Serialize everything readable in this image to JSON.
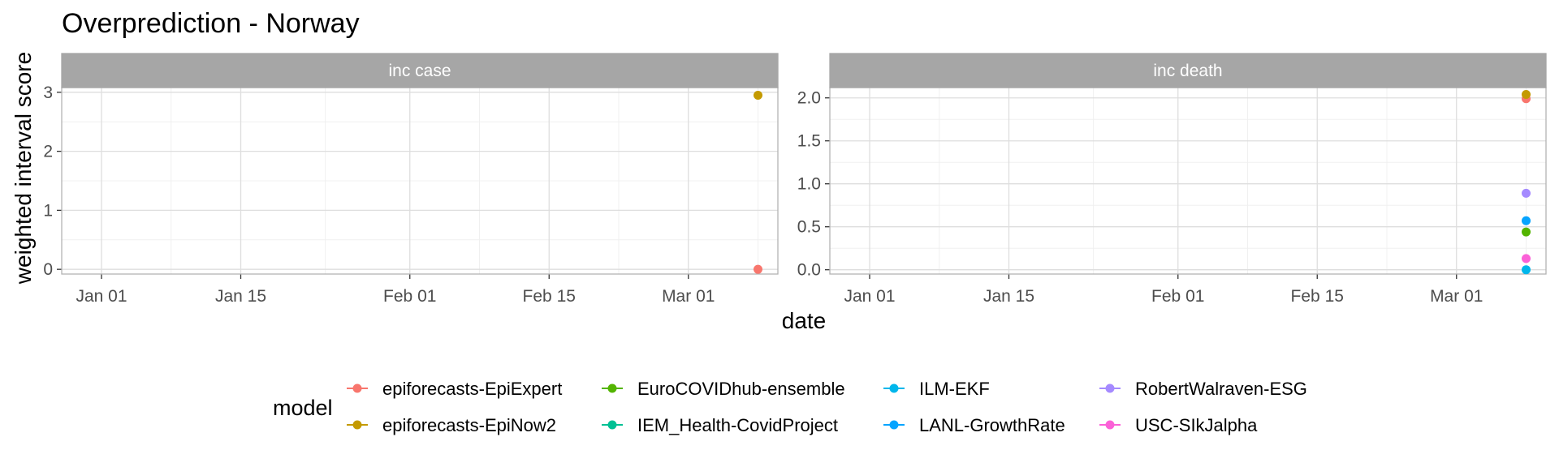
{
  "chart_data": {
    "type": "scatter",
    "title": "Overprediction - Norway",
    "xlabel": "date",
    "ylabel": "weighted interval score",
    "x_tick_labels": [
      "Jan 01",
      "Jan 15",
      "Feb 01",
      "Feb 15",
      "Mar 01"
    ],
    "x_tick_dates": [
      "2021-01-01",
      "2021-01-15",
      "2021-02-01",
      "2021-02-15",
      "2021-03-01"
    ],
    "xlim": [
      "2020-12-28",
      "2021-03-10"
    ],
    "grid": true,
    "legend_title": "model",
    "legend_position": "bottom",
    "series": [
      {
        "name": "epiforecasts-EpiExpert",
        "color": "#F8766D"
      },
      {
        "name": "epiforecasts-EpiNow2",
        "color": "#C49A00"
      },
      {
        "name": "EuroCOVIDhub-ensemble",
        "color": "#53B400"
      },
      {
        "name": "IEM_Health-CovidProject",
        "color": "#00C094"
      },
      {
        "name": "ILM-EKF",
        "color": "#00B6EB"
      },
      {
        "name": "LANL-GrowthRate",
        "color": "#06A4FF"
      },
      {
        "name": "RobertWalraven-ESG",
        "color": "#A58AFF"
      },
      {
        "name": "USC-SIkJalpha",
        "color": "#FB61D7"
      }
    ],
    "panels": [
      {
        "label": "inc case",
        "ylim": [
          -0.08,
          3.08
        ],
        "y_ticks": [
          0,
          1,
          2,
          3
        ],
        "y_tick_labels": [
          "0",
          "1",
          "2",
          "3"
        ],
        "points": [
          {
            "model": "epiforecasts-EpiExpert",
            "date": "2021-03-08",
            "value": 0.0
          },
          {
            "model": "epiforecasts-EpiNow2",
            "date": "2021-03-08",
            "value": 2.95
          }
        ]
      },
      {
        "label": "inc death",
        "ylim": [
          -0.05,
          2.12
        ],
        "y_ticks": [
          0,
          0.5,
          1.0,
          1.5,
          2.0
        ],
        "y_tick_labels": [
          "0.0",
          "0.5",
          "1.0",
          "1.5",
          "2.0"
        ],
        "points": [
          {
            "model": "epiforecasts-EpiExpert",
            "date": "2021-03-08",
            "value": 1.99
          },
          {
            "model": "epiforecasts-EpiNow2",
            "date": "2021-03-08",
            "value": 2.04
          },
          {
            "model": "EuroCOVIDhub-ensemble",
            "date": "2021-03-08",
            "value": 0.44
          },
          {
            "model": "ILM-EKF",
            "date": "2021-03-08",
            "value": 0.0
          },
          {
            "model": "LANL-GrowthRate",
            "date": "2021-03-08",
            "value": 0.57
          },
          {
            "model": "RobertWalraven-ESG",
            "date": "2021-03-08",
            "value": 0.89
          },
          {
            "model": "USC-SIkJalpha",
            "date": "2021-03-08",
            "value": 0.13
          }
        ]
      }
    ]
  }
}
